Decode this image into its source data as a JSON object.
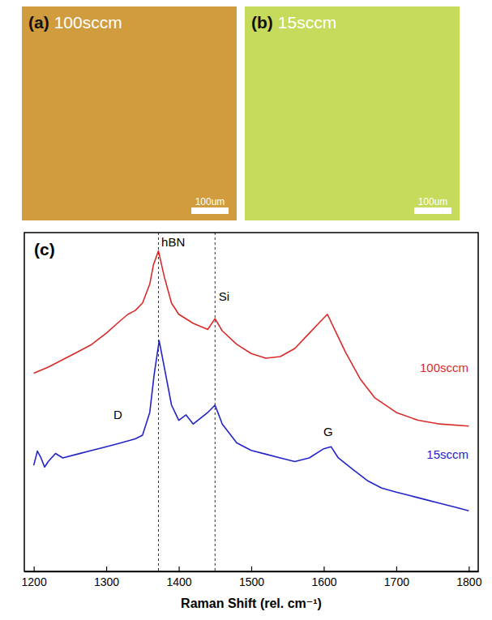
{
  "images": [
    {
      "label": "(a)",
      "text": "100sccm",
      "scale_bar": "100um",
      "color": "#d19c3e"
    },
    {
      "label": "(b)",
      "text": "15sccm",
      "scale_bar": "100um",
      "color": "#c6da5c"
    }
  ],
  "chart_data": {
    "type": "line",
    "panel_label": "(c)",
    "x_label": "Raman Shift (rel. cm⁻¹)",
    "xlim": [
      1187,
      1813
    ],
    "ylim": [
      0,
      100
    ],
    "xticks": [
      1200,
      1300,
      1400,
      1500,
      1600,
      1700,
      1800
    ],
    "tick_labels": "x",
    "vlines": [
      1372,
      1450
    ],
    "annotations": [
      {
        "text": "hBN",
        "x": 1376,
        "y": 96
      },
      {
        "text": "Si",
        "x": 1455,
        "y": 80
      },
      {
        "text": "D",
        "x": 1316,
        "y": 45
      },
      {
        "text": "G",
        "x": 1606,
        "y": 40
      }
    ],
    "series": [
      {
        "name": "100sccm",
        "color": "#d92a2a",
        "x": [
          1200,
          1220,
          1240,
          1260,
          1280,
          1300,
          1320,
          1330,
          1340,
          1350,
          1360,
          1365,
          1372,
          1380,
          1390,
          1400,
          1420,
          1440,
          1450,
          1460,
          1480,
          1500,
          1520,
          1540,
          1560,
          1580,
          1595,
          1605,
          1615,
          1630,
          1650,
          1670,
          1700,
          1730,
          1760,
          1800
        ],
        "values": [
          58.5,
          60.3,
          62.5,
          64.7,
          67,
          70.3,
          74.1,
          75.9,
          77,
          79.2,
          84.8,
          90.4,
          94.6,
          87,
          79.2,
          75.9,
          73.2,
          71.4,
          74.6,
          71,
          67,
          64.3,
          62.9,
          63.4,
          65.8,
          70.3,
          73.7,
          75.9,
          71.4,
          64.7,
          56.9,
          51.3,
          46.9,
          44.6,
          43.5,
          42.9
        ]
      },
      {
        "name": "15sccm",
        "color": "#2323c8",
        "x": [
          1200,
          1205,
          1210,
          1215,
          1220,
          1230,
          1240,
          1260,
          1280,
          1300,
          1320,
          1340,
          1350,
          1360,
          1366,
          1373,
          1380,
          1390,
          1400,
          1410,
          1420,
          1440,
          1450,
          1460,
          1480,
          1500,
          1520,
          1540,
          1560,
          1580,
          1600,
          1610,
          1620,
          1640,
          1660,
          1680,
          1700,
          1720,
          1740,
          1760,
          1780,
          1800
        ],
        "values": [
          31.3,
          35.5,
          33.5,
          30.8,
          32.4,
          34.8,
          33.5,
          34.6,
          35.7,
          36.8,
          37.9,
          39.1,
          40.2,
          46.9,
          58,
          68.1,
          60.3,
          49.1,
          44.6,
          46.2,
          43.5,
          46.9,
          49.1,
          43.5,
          37.9,
          35.7,
          34.6,
          33.5,
          32.4,
          33.5,
          36.2,
          36.8,
          33.5,
          30.1,
          26.8,
          24.6,
          23.4,
          22.3,
          21.2,
          20.1,
          19,
          17.9
        ]
      }
    ]
  }
}
